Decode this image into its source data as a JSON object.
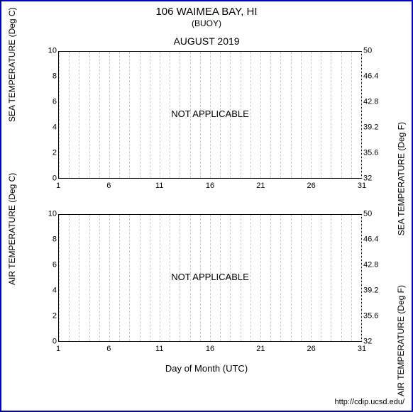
{
  "header": {
    "title": "106 WAIMEA BAY, HI",
    "subtitle": "(BUOY)",
    "period": "AUGUST 2019"
  },
  "xaxis": {
    "label": "Day of Month (UTC)",
    "ticks": [
      1,
      6,
      11,
      16,
      21,
      26,
      31
    ],
    "min": 1,
    "max": 31,
    "minor_step": 1
  },
  "charts": [
    {
      "id": "sea-temp",
      "ylabel_left": "SEA TEMPERATURE (Deg C)",
      "ylabel_right": "SEA TEMPERATURE (Deg F)",
      "left_axis": {
        "min": 0,
        "max": 10,
        "ticks": [
          0,
          2,
          4,
          6,
          8,
          10
        ]
      },
      "right_axis": {
        "min": 32,
        "max": 50,
        "ticks": [
          32,
          35.6,
          39.2,
          42.8,
          46.4,
          50
        ]
      },
      "overlay": "NOT APPLICABLE",
      "grid_color": "#cccccc",
      "border_color": "#000000"
    },
    {
      "id": "air-temp",
      "ylabel_left": "AIR TEMPERATURE (Deg C)",
      "ylabel_right": "AIR TEMPERATURE (Deg F)",
      "left_axis": {
        "min": 0,
        "max": 10,
        "ticks": [
          0,
          2,
          4,
          6,
          8,
          10
        ]
      },
      "right_axis": {
        "min": 32,
        "max": 50,
        "ticks": [
          32,
          35.6,
          39.2,
          42.8,
          46.4,
          50
        ]
      },
      "overlay": "NOT APPLICABLE",
      "grid_color": "#cccccc",
      "border_color": "#000000"
    }
  ],
  "footer": {
    "credit": "http://cdip.ucsd.edu/"
  },
  "style": {
    "frame_border": "#0000cc",
    "background": "#ffffff",
    "font_family": "Arial",
    "title_fontsize": 15,
    "subtitle_fontsize": 12,
    "period_fontsize": 14,
    "tick_fontsize": 11,
    "label_fontsize": 12
  }
}
